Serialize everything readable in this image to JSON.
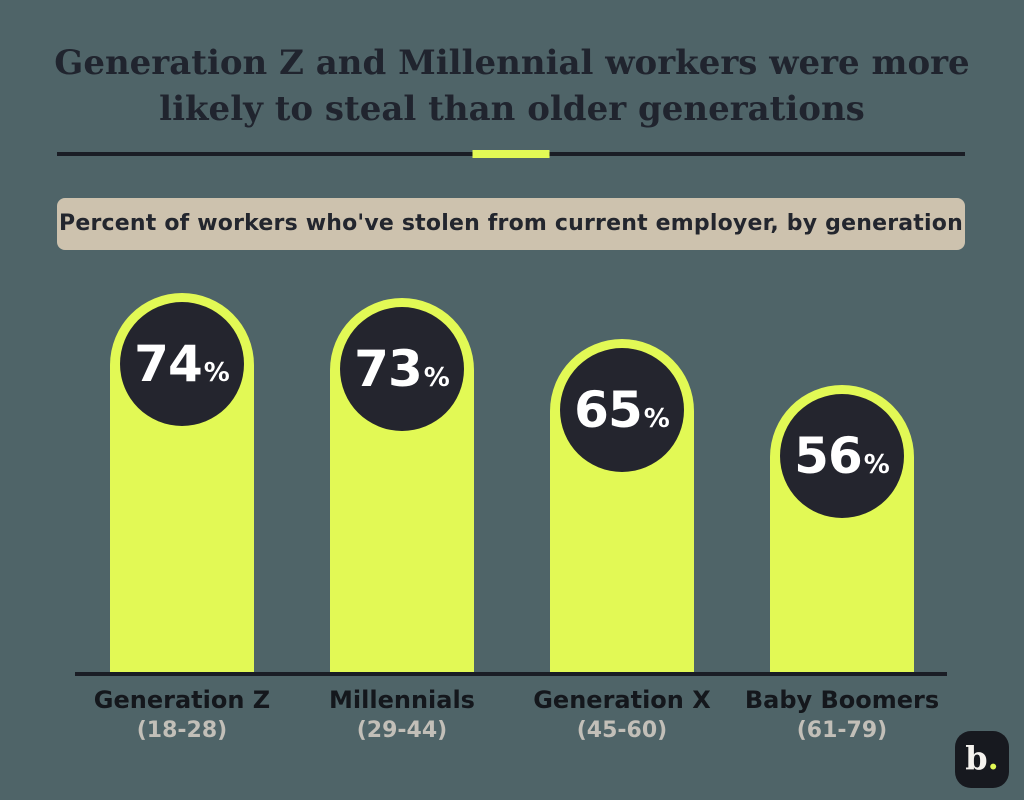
{
  "page": {
    "title_line1": "Generation Z and Millennial workers were more",
    "title_line2": "likely to steal than older generations",
    "subtitle": "Percent of workers who've stolen from current employer, by generation",
    "logo_text": "b",
    "logo_dot": "."
  },
  "colors": {
    "background": "#4f6468",
    "bar": "#e2f955",
    "bubble": "#24252e",
    "banner_bg": "#cdc2ae",
    "title": "#20242e",
    "category_label": "#14171c",
    "age_label": "#c2bfb8",
    "accent": "#e2f955",
    "axis": "#1a1d25",
    "logo_bg": "#17191f",
    "value_text": "#ffffff"
  },
  "chart_data": {
    "type": "bar",
    "title": "Generation Z and Millennial workers were more likely to steal than older generations",
    "subtitle": "Percent of workers who've stolen from current employer, by generation",
    "categories": [
      "Generation Z",
      "Millennials",
      "Generation X",
      "Baby Boomers"
    ],
    "age_ranges": [
      "(18-28)",
      "(29-44)",
      "(45-60)",
      "(61-79)"
    ],
    "values": [
      74,
      73,
      65,
      56
    ],
    "unit": "%",
    "value_labels": [
      "74%",
      "73%",
      "65%",
      "56%"
    ],
    "ylim": [
      0,
      100
    ],
    "xlabel": "",
    "ylabel": "",
    "grid": false,
    "legend": "none",
    "bar_color": "#e2f955",
    "value_bubble_color": "#24252e"
  }
}
